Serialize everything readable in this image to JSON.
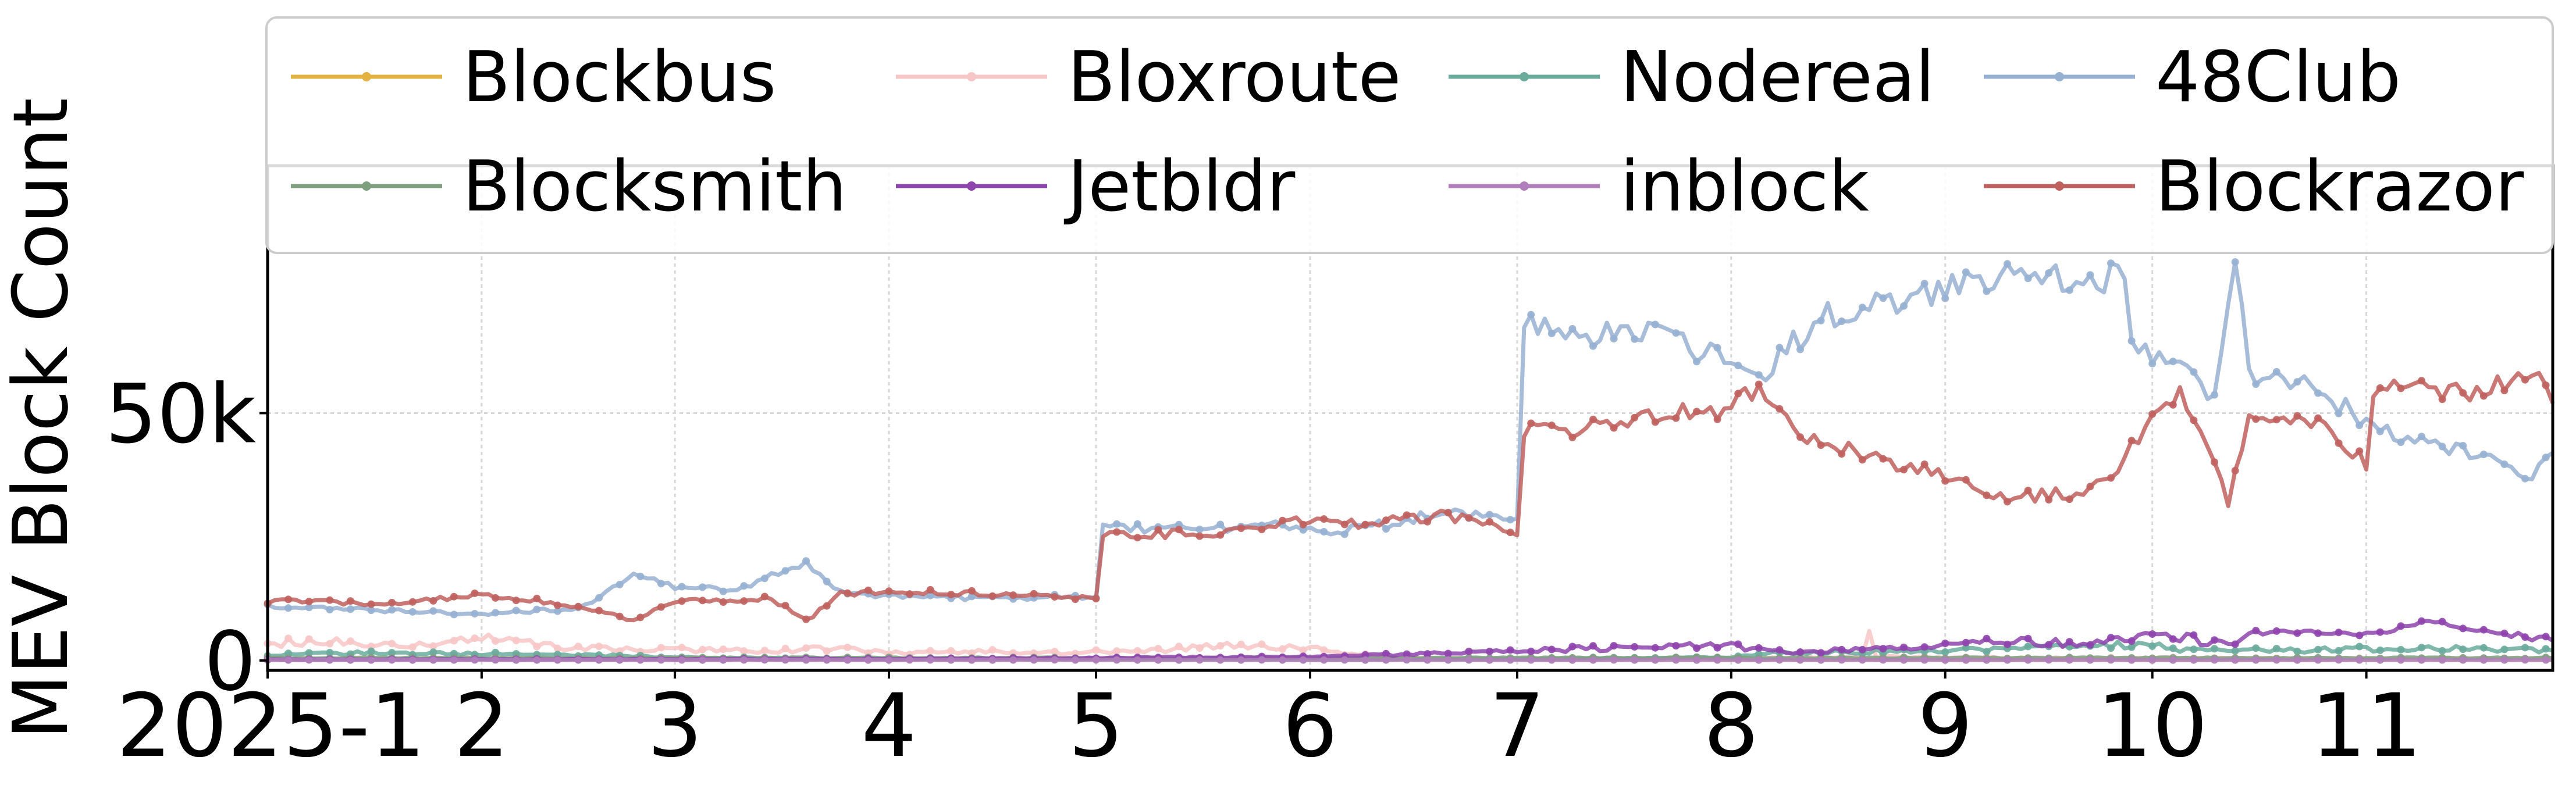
{
  "chart_data": {
    "type": "line",
    "title": "",
    "xlabel": "",
    "ylabel": "MEV Block Count",
    "x_range": [
      "2025-01-01",
      "2025-11-28"
    ],
    "ylim": [
      -2000,
      100000
    ],
    "grid": true,
    "legend_position": "top",
    "x_ticks": [
      {
        "label": "2025-1",
        "date": "2025-01-01"
      },
      {
        "label": "2",
        "date": "2025-02-01"
      },
      {
        "label": "3",
        "date": "2025-03-01"
      },
      {
        "label": "4",
        "date": "2025-04-01"
      },
      {
        "label": "5",
        "date": "2025-05-01"
      },
      {
        "label": "6",
        "date": "2025-06-01"
      },
      {
        "label": "7",
        "date": "2025-07-01"
      },
      {
        "label": "8",
        "date": "2025-08-01"
      },
      {
        "label": "9",
        "date": "2025-09-01"
      },
      {
        "label": "10",
        "date": "2025-10-01"
      },
      {
        "label": "11",
        "date": "2025-11-01"
      }
    ],
    "y_ticks": [
      {
        "label": "0",
        "value": 0
      },
      {
        "label": "50k",
        "value": 50000
      }
    ],
    "series": [
      {
        "name": "Blockbus",
        "color": "#e3b341",
        "points": [
          [
            "2025-01-01",
            200
          ],
          [
            "2025-11-28",
            200
          ]
        ]
      },
      {
        "name": "Bloxroute",
        "color": "#f7c6c6",
        "points": [
          [
            "2025-01-01",
            3500
          ],
          [
            "2025-01-10",
            4000
          ],
          [
            "2025-01-20",
            3000
          ],
          [
            "2025-02-01",
            4500
          ],
          [
            "2025-02-10",
            3000
          ],
          [
            "2025-02-20",
            2500
          ],
          [
            "2025-03-01",
            2200
          ],
          [
            "2025-03-15",
            2000
          ],
          [
            "2025-03-25",
            2500
          ],
          [
            "2025-04-01",
            1500
          ],
          [
            "2025-04-15",
            1800
          ],
          [
            "2025-04-25",
            1500
          ],
          [
            "2025-05-01",
            1700
          ],
          [
            "2025-05-10",
            2000
          ],
          [
            "2025-05-20",
            3000
          ],
          [
            "2025-06-01",
            2500
          ],
          [
            "2025-06-05",
            1500
          ],
          [
            "2025-06-15",
            500
          ],
          [
            "2025-07-01",
            300
          ],
          [
            "2025-08-01",
            400
          ],
          [
            "2025-08-20",
            800
          ],
          [
            "2025-08-21",
            6000
          ],
          [
            "2025-08-22",
            800
          ],
          [
            "2025-09-01",
            600
          ],
          [
            "2025-10-01",
            500
          ],
          [
            "2025-11-01",
            400
          ],
          [
            "2025-11-28",
            400
          ]
        ]
      },
      {
        "name": "Nodereal",
        "color": "#6aab9c",
        "points": [
          [
            "2025-01-01",
            1200
          ],
          [
            "2025-01-15",
            1500
          ],
          [
            "2025-02-01",
            1400
          ],
          [
            "2025-02-20",
            1000
          ],
          [
            "2025-03-01",
            600
          ],
          [
            "2025-04-01",
            400
          ],
          [
            "2025-05-01",
            300
          ],
          [
            "2025-06-01",
            200
          ],
          [
            "2025-07-01",
            300
          ],
          [
            "2025-08-01",
            600
          ],
          [
            "2025-08-05",
            1500
          ],
          [
            "2025-08-20",
            1800
          ],
          [
            "2025-09-01",
            2000
          ],
          [
            "2025-09-15",
            2500
          ],
          [
            "2025-10-01",
            3500
          ],
          [
            "2025-10-05",
            2000
          ],
          [
            "2025-10-20",
            2000
          ],
          [
            "2025-11-10",
            2500
          ],
          [
            "2025-11-28",
            2000
          ]
        ]
      },
      {
        "name": "48Club",
        "color": "#96b0d1",
        "points": [
          [
            "2025-01-01",
            11000
          ],
          [
            "2025-01-20",
            10000
          ],
          [
            "2025-02-01",
            9500
          ],
          [
            "2025-02-15",
            10500
          ],
          [
            "2025-02-23",
            17000
          ],
          [
            "2025-03-01",
            15000
          ],
          [
            "2025-03-10",
            14000
          ],
          [
            "2025-03-20",
            20000
          ],
          [
            "2025-03-25",
            14000
          ],
          [
            "2025-04-01",
            13000
          ],
          [
            "2025-04-15",
            12500
          ],
          [
            "2025-05-01",
            13000
          ],
          [
            "2025-05-02",
            27000
          ],
          [
            "2025-05-15",
            26500
          ],
          [
            "2025-05-25",
            27500
          ],
          [
            "2025-06-01",
            26000
          ],
          [
            "2025-06-10",
            27000
          ],
          [
            "2025-06-20",
            30000
          ],
          [
            "2025-06-30",
            28000
          ],
          [
            "2025-07-01",
            28000
          ],
          [
            "2025-07-02",
            69000
          ],
          [
            "2025-07-10",
            65000
          ],
          [
            "2025-07-20",
            67000
          ],
          [
            "2025-08-01",
            60000
          ],
          [
            "2025-08-05",
            57000
          ],
          [
            "2025-08-10",
            64000
          ],
          [
            "2025-08-15",
            70000
          ],
          [
            "2025-08-25",
            72000
          ],
          [
            "2025-09-01",
            75000
          ],
          [
            "2025-09-10",
            79000
          ],
          [
            "2025-09-20",
            76000
          ],
          [
            "2025-09-27",
            78000
          ],
          [
            "2025-09-28",
            63000
          ],
          [
            "2025-10-05",
            60000
          ],
          [
            "2025-10-10",
            52000
          ],
          [
            "2025-10-13",
            80000
          ],
          [
            "2025-10-15",
            58000
          ],
          [
            "2025-10-25",
            55000
          ],
          [
            "2025-11-01",
            48000
          ],
          [
            "2025-11-10",
            43000
          ],
          [
            "2025-11-20",
            42000
          ],
          [
            "2025-11-25",
            37000
          ],
          [
            "2025-11-28",
            42000
          ]
        ]
      },
      {
        "name": "Blocksmith",
        "color": "#7ea07e",
        "points": [
          [
            "2025-01-01",
            500
          ],
          [
            "2025-11-28",
            500
          ]
        ]
      },
      {
        "name": "Jetbldr",
        "color": "#8e44ad",
        "points": [
          [
            "2025-01-01",
            200
          ],
          [
            "2025-04-01",
            300
          ],
          [
            "2025-05-01",
            500
          ],
          [
            "2025-06-01",
            800
          ],
          [
            "2025-06-15",
            1200
          ],
          [
            "2025-07-01",
            2000
          ],
          [
            "2025-07-15",
            2500
          ],
          [
            "2025-08-01",
            3000
          ],
          [
            "2025-08-10",
            1500
          ],
          [
            "2025-08-20",
            2500
          ],
          [
            "2025-09-01",
            3000
          ],
          [
            "2025-09-10",
            4000
          ],
          [
            "2025-09-20",
            3500
          ],
          [
            "2025-10-01",
            5500
          ],
          [
            "2025-10-10",
            3500
          ],
          [
            "2025-10-20",
            6000
          ],
          [
            "2025-11-01",
            5000
          ],
          [
            "2025-11-10",
            8000
          ],
          [
            "2025-11-20",
            5500
          ],
          [
            "2025-11-28",
            4000
          ]
        ]
      },
      {
        "name": "inblock",
        "color": "#b07fbb",
        "points": [
          [
            "2025-01-01",
            100
          ],
          [
            "2025-11-28",
            100
          ]
        ]
      },
      {
        "name": "Blockrazor",
        "color": "#c0605e",
        "points": [
          [
            "2025-01-01",
            12000
          ],
          [
            "2025-01-20",
            11500
          ],
          [
            "2025-02-01",
            13500
          ],
          [
            "2025-02-15",
            11000
          ],
          [
            "2025-02-23",
            8000
          ],
          [
            "2025-03-01",
            12000
          ],
          [
            "2025-03-15",
            12500
          ],
          [
            "2025-03-20",
            8000
          ],
          [
            "2025-03-25",
            13500
          ],
          [
            "2025-04-01",
            14000
          ],
          [
            "2025-04-15",
            13500
          ],
          [
            "2025-05-01",
            12500
          ],
          [
            "2025-05-02",
            26000
          ],
          [
            "2025-05-15",
            25500
          ],
          [
            "2025-05-25",
            27000
          ],
          [
            "2025-06-01",
            28500
          ],
          [
            "2025-06-10",
            27500
          ],
          [
            "2025-06-20",
            29500
          ],
          [
            "2025-06-30",
            26500
          ],
          [
            "2025-07-01",
            26000
          ],
          [
            "2025-07-02",
            46000
          ],
          [
            "2025-07-10",
            47000
          ],
          [
            "2025-07-20",
            49000
          ],
          [
            "2025-08-01",
            51000
          ],
          [
            "2025-08-05",
            55000
          ],
          [
            "2025-08-10",
            46000
          ],
          [
            "2025-08-20",
            42000
          ],
          [
            "2025-09-01",
            37000
          ],
          [
            "2025-09-10",
            33000
          ],
          [
            "2025-09-20",
            34000
          ],
          [
            "2025-09-25",
            37000
          ],
          [
            "2025-10-01",
            50000
          ],
          [
            "2025-10-05",
            55000
          ],
          [
            "2025-10-12",
            32000
          ],
          [
            "2025-10-15",
            48000
          ],
          [
            "2025-10-25",
            48000
          ],
          [
            "2025-11-01",
            40000
          ],
          [
            "2025-11-02",
            55000
          ],
          [
            "2025-11-15",
            54000
          ],
          [
            "2025-11-25",
            58000
          ],
          [
            "2025-11-28",
            52000
          ]
        ]
      }
    ]
  }
}
